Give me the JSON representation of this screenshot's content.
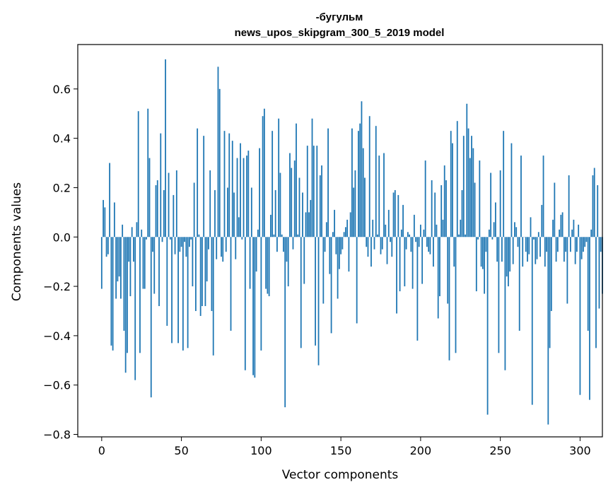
{
  "chart_data": {
    "type": "bar",
    "title": "-бугульм",
    "subtitle": "news_upos_skipgram_300_5_2019 model",
    "xlabel": "Vector components",
    "ylabel": "Components values",
    "xlim": [
      -15,
      314
    ],
    "ylim": [
      -0.81,
      0.78
    ],
    "xticks": [
      0,
      50,
      100,
      150,
      200,
      250,
      300
    ],
    "yticks": [
      -0.8,
      -0.6,
      -0.4,
      -0.2,
      0.0,
      0.2,
      0.4,
      0.6
    ],
    "ytick_labels": [
      "−0.8",
      "−0.6",
      "−0.4",
      "−0.2",
      "0.0",
      "0.2",
      "0.4",
      "0.6"
    ],
    "bar_color": "#1f77b4",
    "values": [
      -0.21,
      0.15,
      0.12,
      -0.08,
      -0.07,
      0.3,
      -0.44,
      -0.46,
      0.14,
      -0.25,
      -0.18,
      -0.16,
      -0.25,
      0.05,
      -0.38,
      -0.55,
      -0.47,
      -0.1,
      -0.24,
      0.04,
      -0.1,
      -0.58,
      0.06,
      0.51,
      -0.47,
      0.03,
      -0.21,
      -0.21,
      -0.01,
      0.52,
      0.32,
      -0.65,
      -0.06,
      -0.23,
      0.21,
      0.23,
      -0.28,
      0.42,
      -0.02,
      0.19,
      0.72,
      -0.36,
      0.26,
      -0.01,
      -0.43,
      0.17,
      -0.07,
      0.27,
      -0.43,
      -0.06,
      -0.04,
      -0.46,
      -0.02,
      -0.08,
      -0.45,
      -0.04,
      -0.01,
      -0.2,
      0.22,
      -0.3,
      0.44,
      0.01,
      -0.32,
      -0.28,
      0.41,
      -0.28,
      -0.18,
      -0.05,
      0.27,
      -0.3,
      -0.48,
      0.19,
      -0.09,
      0.69,
      0.6,
      -0.08,
      -0.1,
      0.43,
      -0.06,
      0.2,
      0.42,
      -0.38,
      0.39,
      0.18,
      -0.09,
      0.32,
      0.08,
      0.38,
      -0.01,
      0.32,
      -0.54,
      0.33,
      0.35,
      -0.21,
      0.2,
      -0.56,
      -0.57,
      -0.14,
      0.03,
      0.36,
      -0.46,
      0.49,
      0.52,
      -0.21,
      -0.23,
      -0.24,
      0.09,
      0.43,
      0.01,
      0.19,
      -0.06,
      0.48,
      0.26,
      0.01,
      -0.06,
      -0.69,
      -0.1,
      -0.2,
      0.34,
      0.28,
      -0.05,
      0.31,
      0.46,
      0.01,
      0.24,
      -0.45,
      0.18,
      -0.19,
      0.1,
      0.37,
      0.1,
      0.15,
      0.48,
      0.37,
      -0.44,
      0.37,
      -0.52,
      0.25,
      0.29,
      -0.27,
      -0.06,
      0.06,
      0.44,
      -0.15,
      -0.39,
      0.02,
      0.11,
      -0.07,
      -0.25,
      -0.13,
      -0.07,
      -0.05,
      0.02,
      0.04,
      0.07,
      -0.14,
      0.1,
      0.44,
      0.2,
      0.27,
      -0.35,
      0.43,
      0.46,
      0.55,
      0.36,
      0.24,
      -0.04,
      -0.08,
      0.49,
      -0.12,
      0.07,
      -0.05,
      0.45,
      0.01,
      0.33,
      -0.07,
      -0.05,
      0.34,
      0.05,
      -0.11,
      0.11,
      -0.02,
      -0.08,
      0.18,
      0.19,
      -0.31,
      0.17,
      -0.22,
      0.03,
      0.13,
      -0.2,
      -0.05,
      0.02,
      0.01,
      -0.06,
      -0.21,
      0.09,
      -0.02,
      -0.42,
      -0.04,
      0.05,
      -0.19,
      0.03,
      0.31,
      -0.04,
      -0.06,
      -0.07,
      0.23,
      -0.12,
      0.18,
      0.05,
      -0.33,
      -0.24,
      0.21,
      0.07,
      0.29,
      0.23,
      -0.27,
      -0.5,
      0.43,
      0.38,
      -0.12,
      -0.47,
      0.47,
      0.01,
      0.07,
      0.19,
      0.41,
      0.01,
      0.54,
      0.44,
      0.32,
      0.41,
      0.36,
      0.22,
      -0.22,
      -0.01,
      0.31,
      -0.12,
      -0.13,
      -0.23,
      -0.06,
      -0.72,
      0.03,
      0.26,
      -0.01,
      0.06,
      0.14,
      -0.1,
      -0.47,
      0.27,
      -0.1,
      0.43,
      -0.54,
      -0.16,
      -0.2,
      -0.14,
      0.38,
      -0.11,
      0.06,
      0.04,
      -0.04,
      -0.38,
      0.33,
      -0.12,
      0.0,
      -0.06,
      -0.1,
      -0.07,
      0.08,
      -0.68,
      -0.01,
      -0.11,
      -0.09,
      0.02,
      -0.08,
      0.13,
      0.33,
      -0.12,
      -0.06,
      -0.76,
      -0.45,
      -0.3,
      0.07,
      0.22,
      -0.1,
      -0.06,
      0.03,
      0.09,
      0.1,
      -0.1,
      -0.06,
      -0.27,
      0.25,
      -0.06,
      0.03,
      0.07,
      -0.11,
      -0.06,
      0.05,
      -0.64,
      -0.09,
      -0.06,
      -0.04,
      -0.02,
      -0.38,
      -0.66,
      0.03,
      0.25,
      0.28,
      -0.45,
      0.21,
      -0.29,
      -0.06,
      -0.23
    ]
  }
}
